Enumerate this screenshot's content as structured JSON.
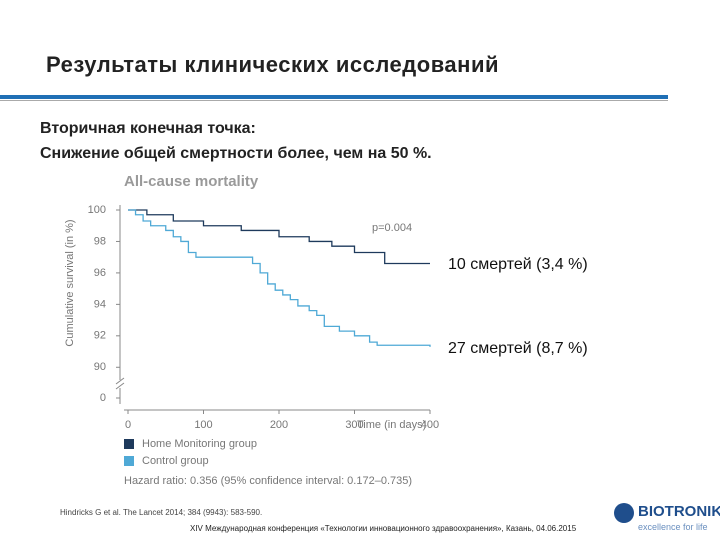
{
  "slide": {
    "title": "Результаты клинических исследований",
    "subtitle_lines": [
      "Вторичная конечная точка:",
      "Снижение общей смертности более, чем на 50 %."
    ],
    "annotations": [
      "10 смертей (3,4 %)",
      "27 смертей (8,7 %)"
    ],
    "citation": "Hindricks G et al. The Lancet 2014; 384 (9943): 583-590.",
    "footer": "XIV Международная конференция «Технологии инновационного здравоохранения», Казань, 04.06.2015",
    "logo": "BIOTRONIK",
    "tagline": "excellence for life"
  },
  "chart_data": {
    "type": "step",
    "title": "All-cause mortality",
    "annotation": "p=0.004",
    "xlabel": "Time (in days)",
    "ylabel": "Cumulative survival (in %)",
    "hazard_ratio": "Hazard ratio: 0.356 (95% confidence interval: 0.172–0.735)",
    "xlim": [
      0,
      400
    ],
    "xticks": [
      0,
      100,
      200,
      300,
      400
    ],
    "ylim": [
      89,
      100
    ],
    "yticks": [
      0,
      90,
      92,
      94,
      96,
      98,
      100
    ],
    "axis_break": true,
    "series": [
      {
        "name": "Home Monitoring group",
        "color": "#1e3a5c",
        "x": [
          0,
          25,
          60,
          100,
          150,
          200,
          240,
          270,
          300,
          340,
          400
        ],
        "values": [
          100,
          99.7,
          99.3,
          99.0,
          98.7,
          98.3,
          98.0,
          97.7,
          97.3,
          96.6,
          96.6
        ]
      },
      {
        "name": "Control group",
        "color": "#4fa9d6",
        "x": [
          0,
          10,
          20,
          30,
          50,
          60,
          70,
          80,
          90,
          165,
          175,
          185,
          195,
          205,
          215,
          225,
          240,
          250,
          260,
          280,
          300,
          320,
          330,
          400
        ],
        "values": [
          100,
          99.7,
          99.3,
          99.0,
          98.7,
          98.3,
          98.0,
          97.3,
          97.0,
          96.6,
          96.0,
          95.3,
          94.9,
          94.6,
          94.3,
          93.9,
          93.6,
          93.3,
          92.6,
          92.3,
          92.0,
          91.6,
          91.4,
          91.3
        ]
      }
    ]
  }
}
